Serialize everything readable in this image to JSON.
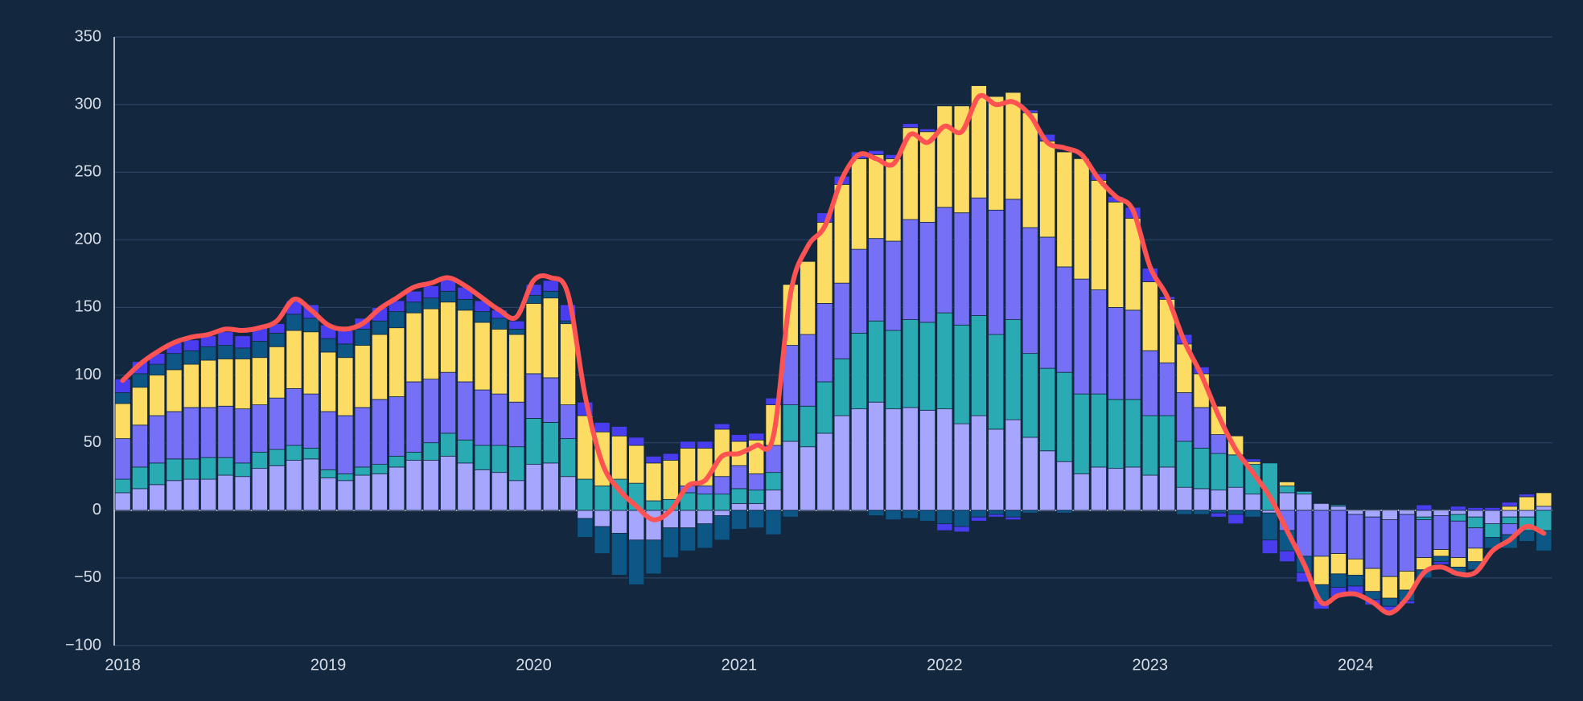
{
  "chart_data": {
    "type": "stacked-bar-line",
    "categories": [
      "2018",
      null,
      null,
      null,
      null,
      null,
      null,
      null,
      null,
      null,
      null,
      null,
      "2019",
      null,
      null,
      null,
      null,
      null,
      null,
      null,
      null,
      null,
      null,
      null,
      "2020",
      null,
      null,
      null,
      null,
      null,
      null,
      null,
      null,
      null,
      null,
      null,
      "2021",
      null,
      null,
      null,
      null,
      null,
      null,
      null,
      null,
      null,
      null,
      null,
      "2022",
      null,
      null,
      null,
      null,
      null,
      null,
      null,
      null,
      null,
      null,
      null,
      "2023",
      null,
      null,
      null,
      null,
      null,
      null,
      null,
      null,
      null,
      null,
      null,
      "2024",
      null,
      null,
      null,
      null,
      null,
      null,
      null,
      null,
      null,
      null,
      null
    ],
    "series": [
      {
        "color": "#a6a6ff",
        "values": [
          13,
          16,
          19,
          22,
          23,
          23,
          26,
          25,
          31,
          33,
          37,
          38,
          24,
          22,
          26,
          27,
          32,
          37,
          37,
          40,
          35,
          30,
          28,
          22,
          34,
          35,
          25,
          -6,
          -12,
          -17,
          -22,
          -22,
          -13,
          -13,
          -10,
          -4,
          5,
          5,
          15,
          51,
          47,
          57,
          70,
          75,
          80,
          75,
          76,
          74,
          75,
          64,
          70,
          60,
          67,
          54,
          44,
          36,
          27,
          32,
          31,
          32,
          26,
          32,
          17,
          16,
          15,
          17,
          12,
          -2,
          13,
          12,
          5,
          3,
          -3,
          -5,
          -7,
          -3,
          -5,
          -4,
          -3,
          -5,
          -10,
          -5,
          -5,
          3
        ]
      },
      {
        "color": "#2aabb3",
        "values": [
          10,
          16,
          16,
          16,
          15,
          16,
          13,
          10,
          12,
          12,
          11,
          8,
          6,
          5,
          6,
          7,
          8,
          6,
          13,
          17,
          17,
          18,
          20,
          25,
          34,
          30,
          28,
          23,
          18,
          23,
          20,
          7,
          8,
          13,
          12,
          12,
          11,
          10,
          13,
          27,
          30,
          38,
          42,
          56,
          60,
          58,
          65,
          65,
          71,
          73,
          74,
          70,
          74,
          62,
          61,
          66,
          59,
          54,
          51,
          50,
          44,
          38,
          34,
          30,
          27,
          24,
          22,
          35,
          5,
          2,
          0,
          1,
          0,
          0,
          0,
          0,
          -2,
          0,
          -5,
          -8,
          -10,
          -5,
          -10,
          -15
        ]
      },
      {
        "color": "#7670f6",
        "values": [
          30,
          31,
          35,
          35,
          38,
          37,
          38,
          40,
          35,
          38,
          42,
          40,
          43,
          43,
          44,
          48,
          44,
          52,
          47,
          45,
          43,
          41,
          38,
          33,
          33,
          33,
          25,
          0,
          0,
          0,
          0,
          0,
          0,
          5,
          6,
          13,
          17,
          12,
          20,
          44,
          53,
          58,
          56,
          62,
          61,
          66,
          74,
          74,
          78,
          83,
          87,
          92,
          89,
          93,
          97,
          78,
          85,
          77,
          68,
          66,
          48,
          39,
          36,
          30,
          14,
          0,
          0,
          0,
          -15,
          -34,
          -34,
          -32,
          -33,
          -38,
          -42,
          -42,
          -28,
          -25,
          -27,
          -15,
          0,
          -8,
          0,
          0
        ]
      },
      {
        "color": "#fcdc62",
        "values": [
          26,
          28,
          30,
          31,
          32,
          35,
          35,
          37,
          35,
          38,
          43,
          46,
          44,
          43,
          46,
          48,
          51,
          51,
          52,
          52,
          53,
          50,
          48,
          50,
          52,
          59,
          60,
          47,
          40,
          32,
          28,
          28,
          29,
          28,
          28,
          35,
          18,
          25,
          30,
          45,
          54,
          60,
          73,
          67,
          62,
          61,
          68,
          67,
          75,
          79,
          83,
          84,
          79,
          85,
          71,
          85,
          89,
          81,
          78,
          68,
          51,
          47,
          36,
          25,
          21,
          14,
          2,
          0,
          3,
          0,
          -21,
          -15,
          -12,
          -17,
          -16,
          -14,
          -9,
          -5,
          -7,
          -10,
          0,
          3,
          10,
          10
        ]
      },
      {
        "color": "#0d5787",
        "values": [
          8,
          10,
          8,
          12,
          10,
          10,
          10,
          8,
          12,
          10,
          12,
          10,
          10,
          10,
          12,
          10,
          12,
          8,
          8,
          8,
          8,
          8,
          8,
          4,
          6,
          5,
          2,
          -14,
          -20,
          -31,
          -33,
          -25,
          -22,
          -17,
          -18,
          -18,
          -14,
          -13,
          -18,
          -5,
          0,
          0,
          0,
          0,
          -4,
          -7,
          -6,
          -8,
          -10,
          -12,
          -5,
          -3,
          -5,
          -2,
          0,
          -2,
          0,
          0,
          0,
          0,
          0,
          0,
          -3,
          -3,
          -2,
          -3,
          -5,
          -20,
          -15,
          -12,
          -12,
          -10,
          -8,
          -6,
          -6,
          -8,
          -6,
          -4,
          -6,
          -6,
          -8,
          -10,
          -8,
          -15
        ]
      },
      {
        "color": "#4a3df0",
        "values": [
          10,
          9,
          8,
          8,
          8,
          8,
          10,
          9,
          10,
          7,
          10,
          10,
          10,
          10,
          8,
          10,
          8,
          8,
          9,
          10,
          9,
          8,
          6,
          6,
          8,
          8,
          12,
          10,
          7,
          7,
          6,
          5,
          5,
          5,
          5,
          4,
          5,
          5,
          5,
          0,
          0,
          7,
          6,
          5,
          3,
          3,
          3,
          2,
          -5,
          -4,
          -3,
          -2,
          -2,
          2,
          5,
          0,
          0,
          5,
          4,
          8,
          10,
          2,
          7,
          5,
          -3,
          -7,
          2,
          -10,
          -8,
          -7,
          -6,
          -7,
          -6,
          -4,
          -4,
          -2,
          4,
          -2,
          3,
          2,
          2,
          3,
          2,
          0
        ]
      }
    ],
    "line": {
      "color": "#ff5252",
      "values": [
        96,
        108,
        117,
        124,
        128,
        130,
        134,
        133,
        135,
        140,
        156,
        148,
        137,
        134,
        138,
        149,
        157,
        165,
        168,
        172,
        166,
        157,
        148,
        143,
        170,
        172,
        160,
        85,
        35,
        15,
        3,
        -7,
        0,
        18,
        22,
        40,
        42,
        48,
        55,
        160,
        195,
        210,
        245,
        263,
        260,
        256,
        278,
        272,
        284,
        280,
        306,
        300,
        302,
        292,
        272,
        268,
        263,
        245,
        232,
        222,
        180,
        158,
        125,
        100,
        70,
        45,
        28,
        10,
        -15,
        -40,
        -68,
        -63,
        -62,
        -68,
        -76,
        -65,
        -46,
        -42,
        -47,
        -46,
        -30,
        -22,
        -12,
        -17
      ]
    },
    "ylim": [
      -100,
      350
    ],
    "yticks": [
      {
        "value": -100,
        "label": "−100"
      },
      {
        "value": -50,
        "label": "−50"
      },
      0,
      50,
      100,
      150,
      200,
      250,
      300,
      350
    ],
    "grid": true
  }
}
